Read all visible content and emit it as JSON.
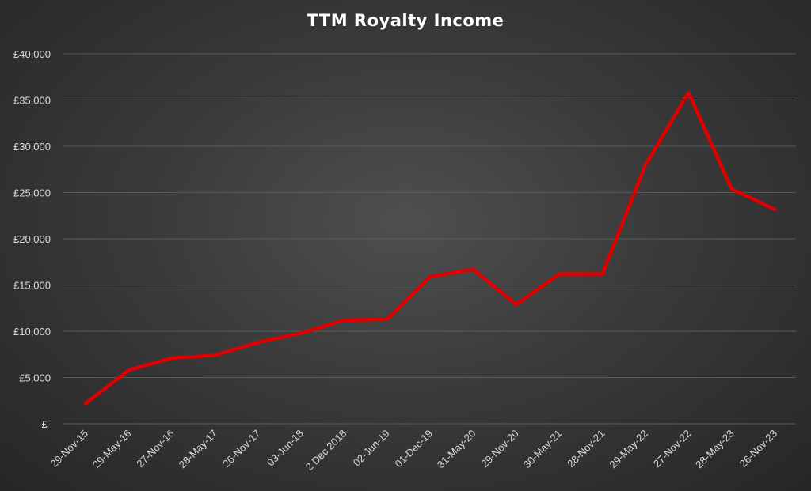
{
  "chart_data": {
    "type": "line",
    "title": "TTM Royalty Income",
    "xlabel": "",
    "ylabel": "",
    "ylim": [
      0,
      40000
    ],
    "grid": true,
    "y_ticks": [
      {
        "value": 0,
        "label": "£-"
      },
      {
        "value": 5000,
        "label": "£5,000"
      },
      {
        "value": 10000,
        "label": "£10,000"
      },
      {
        "value": 15000,
        "label": "£15,000"
      },
      {
        "value": 20000,
        "label": "£20,000"
      },
      {
        "value": 25000,
        "label": "£25,000"
      },
      {
        "value": 30000,
        "label": "£30,000"
      },
      {
        "value": 35000,
        "label": "£35,000"
      },
      {
        "value": 40000,
        "label": "£40,000"
      }
    ],
    "categories": [
      "29-Nov-15",
      "29-May-16",
      "27-Nov-16",
      "28-May-17",
      "26-Nov-17",
      "03-Jun-18",
      "2 Dec 2018",
      "02-Jun-19",
      "01-Dec-19",
      "31-May-20",
      "29-Nov-20",
      "30-May-21",
      "28-Nov-21",
      "29-May-22",
      "27-Nov-22",
      "28-May-23",
      "26-Nov-23"
    ],
    "series": [
      {
        "color": "#e00000",
        "values": [
          2200,
          5800,
          7100,
          7400,
          8800,
          9800,
          11200,
          11300,
          15900,
          16700,
          12900,
          16200,
          16200,
          28000,
          35800,
          25400,
          23200
        ]
      }
    ]
  }
}
